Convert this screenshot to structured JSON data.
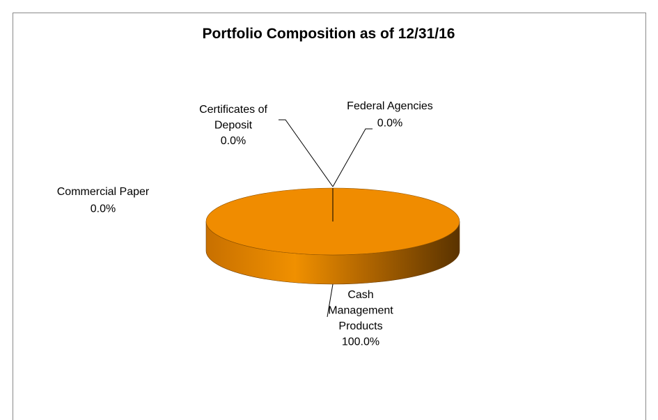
{
  "chart_data": {
    "type": "pie3d",
    "title": "Portfolio Composition as of 12/31/16",
    "categories": [
      "Cash Management Products",
      "Certificates of Deposit",
      "Federal Agencies",
      "Commercial Paper"
    ],
    "values": [
      100,
      0,
      0,
      0
    ],
    "value_labels": [
      "100.0%",
      "0.0%",
      "0.0%",
      "0.0%"
    ],
    "colors": [
      "#f08c00",
      "#4f81bd",
      "#9bbb59",
      "#8064a2"
    ]
  }
}
